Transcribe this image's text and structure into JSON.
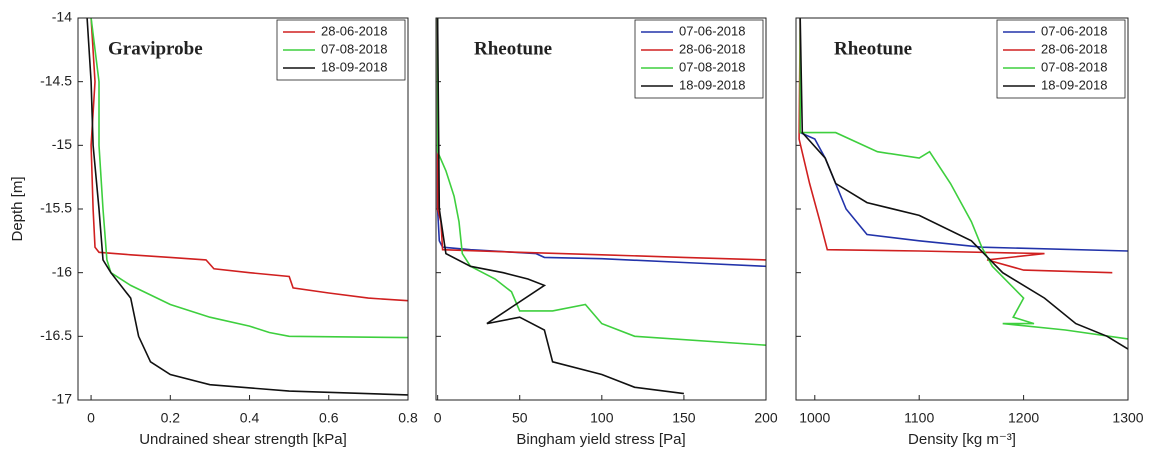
{
  "chart_data": [
    {
      "type": "line",
      "title": "Graviprobe",
      "xlabel": "Undrained shear strength [kPa]",
      "ylabel": "Depth [m]",
      "xlim": [
        -0.033,
        0.8
      ],
      "xticks": [
        0,
        0.2,
        0.4,
        0.6,
        0.8
      ],
      "ylim": [
        -17,
        -14
      ],
      "yticks": [
        -14,
        -14.5,
        -15,
        -15.5,
        -16,
        -16.5,
        -17
      ],
      "show_ytick_labels": true,
      "legend": "upper right",
      "series": [
        {
          "name": "28-06-2018",
          "color": "#d02020",
          "x": [
            0,
            0.01,
            0,
            0.005,
            0.01,
            0.02,
            0.1,
            0.2,
            0.29,
            0.31,
            0.4,
            0.5,
            0.51,
            0.6,
            0.7,
            0.8
          ],
          "y": [
            -14,
            -14.5,
            -15,
            -15.5,
            -15.8,
            -15.84,
            -15.86,
            -15.88,
            -15.9,
            -15.97,
            -16.0,
            -16.03,
            -16.12,
            -16.16,
            -16.2,
            -16.22
          ]
        },
        {
          "name": "07-08-2018",
          "color": "#3ecf3e",
          "x": [
            0,
            0.02,
            0.02,
            0.03,
            0.04,
            0.05,
            0.1,
            0.2,
            0.3,
            0.4,
            0.45,
            0.5,
            0.8
          ],
          "y": [
            -14,
            -14.5,
            -15,
            -15.5,
            -15.9,
            -16.0,
            -16.1,
            -16.25,
            -16.35,
            -16.42,
            -16.47,
            -16.5,
            -16.51
          ]
        },
        {
          "name": "18-09-2018",
          "color": "#111111",
          "x": [
            -0.01,
            0,
            0.005,
            0.02,
            0.03,
            0.05,
            0.1,
            0.12,
            0.15,
            0.2,
            0.3,
            0.5,
            0.8
          ],
          "y": [
            -14,
            -14.5,
            -15,
            -15.5,
            -15.9,
            -16.0,
            -16.2,
            -16.5,
            -16.7,
            -16.8,
            -16.88,
            -16.93,
            -16.96
          ]
        }
      ]
    },
    {
      "type": "line",
      "title": "Rheotune",
      "xlabel": "Bingham yield stress [Pa]",
      "xlim": [
        -1,
        200
      ],
      "xticks": [
        0,
        50,
        100,
        150,
        200
      ],
      "ylim": [
        -17,
        -14
      ],
      "yticks": [
        -14,
        -14.5,
        -15,
        -15.5,
        -16,
        -16.5,
        -17
      ],
      "show_ytick_labels": false,
      "legend": "upper right",
      "series": [
        {
          "name": "07-06-2018",
          "color": "#2233aa",
          "x": [
            0,
            0,
            1,
            3,
            20,
            60,
            65,
            100,
            150,
            200
          ],
          "y": [
            -14,
            -15.5,
            -15.75,
            -15.8,
            -15.82,
            -15.85,
            -15.88,
            -15.89,
            -15.92,
            -15.95
          ]
        },
        {
          "name": "28-06-2018",
          "color": "#d02020",
          "x": [
            0,
            0,
            2,
            3,
            50,
            100,
            150,
            200
          ],
          "y": [
            -14,
            -15.5,
            -15.6,
            -15.82,
            -15.84,
            -15.86,
            -15.88,
            -15.9
          ]
        },
        {
          "name": "07-08-2018",
          "color": "#3ecf3e",
          "x": [
            0,
            0,
            5,
            10,
            13,
            15,
            20,
            35,
            45,
            50,
            70,
            90,
            100,
            120,
            200
          ],
          "y": [
            -14,
            -15.05,
            -15.2,
            -15.4,
            -15.6,
            -15.85,
            -15.95,
            -16.05,
            -16.15,
            -16.3,
            -16.3,
            -16.25,
            -16.4,
            -16.5,
            -16.57
          ]
        },
        {
          "name": "18-09-2018",
          "color": "#111111",
          "x": [
            0,
            1,
            5,
            20,
            40,
            55,
            65,
            30,
            50,
            65,
            70,
            100,
            120,
            150
          ],
          "y": [
            -14,
            -15.5,
            -15.85,
            -15.95,
            -16.0,
            -16.05,
            -16.1,
            -16.4,
            -16.35,
            -16.45,
            -16.7,
            -16.8,
            -16.9,
            -16.95
          ]
        }
      ]
    },
    {
      "type": "line",
      "title": "Rheotune",
      "xlabel": "Density [kg m⁻³]",
      "xlim": [
        982,
        1300
      ],
      "xticks": [
        1000,
        1100,
        1200,
        1300
      ],
      "ylim": [
        -17,
        -14
      ],
      "yticks": [
        -14,
        -14.5,
        -15,
        -15.5,
        -16,
        -16.5,
        -17
      ],
      "show_ytick_labels": false,
      "legend": "upper right",
      "series": [
        {
          "name": "07-06-2018",
          "color": "#2233aa",
          "x": [
            986,
            986,
            1000,
            1010,
            1030,
            1050,
            1100,
            1160,
            1300
          ],
          "y": [
            -14,
            -14.9,
            -14.95,
            -15.1,
            -15.5,
            -15.7,
            -15.75,
            -15.8,
            -15.83
          ]
        },
        {
          "name": "28-06-2018",
          "color": "#d02020",
          "x": [
            986,
            985,
            995,
            1005,
            1012,
            1100,
            1220,
            1165,
            1200,
            1285
          ],
          "y": [
            -14,
            -14.95,
            -15.3,
            -15.6,
            -15.82,
            -15.83,
            -15.85,
            -15.9,
            -15.98,
            -16.0
          ]
        },
        {
          "name": "07-08-2018",
          "color": "#3ecf3e",
          "x": [
            986,
            986,
            1020,
            1060,
            1100,
            1110,
            1130,
            1150,
            1160,
            1170,
            1200,
            1190,
            1210,
            1180,
            1240,
            1300
          ],
          "y": [
            -14,
            -14.9,
            -14.9,
            -15.05,
            -15.1,
            -15.05,
            -15.3,
            -15.6,
            -15.8,
            -15.95,
            -16.2,
            -16.35,
            -16.4,
            -16.4,
            -16.45,
            -16.52
          ]
        },
        {
          "name": "18-09-2018",
          "color": "#111111",
          "x": [
            986,
            988,
            1010,
            1020,
            1050,
            1100,
            1150,
            1180,
            1220,
            1250,
            1280,
            1300
          ],
          "y": [
            -14,
            -14.9,
            -15.1,
            -15.3,
            -15.45,
            -15.55,
            -15.75,
            -16.0,
            -16.2,
            -16.4,
            -16.5,
            -16.6
          ]
        }
      ]
    }
  ]
}
